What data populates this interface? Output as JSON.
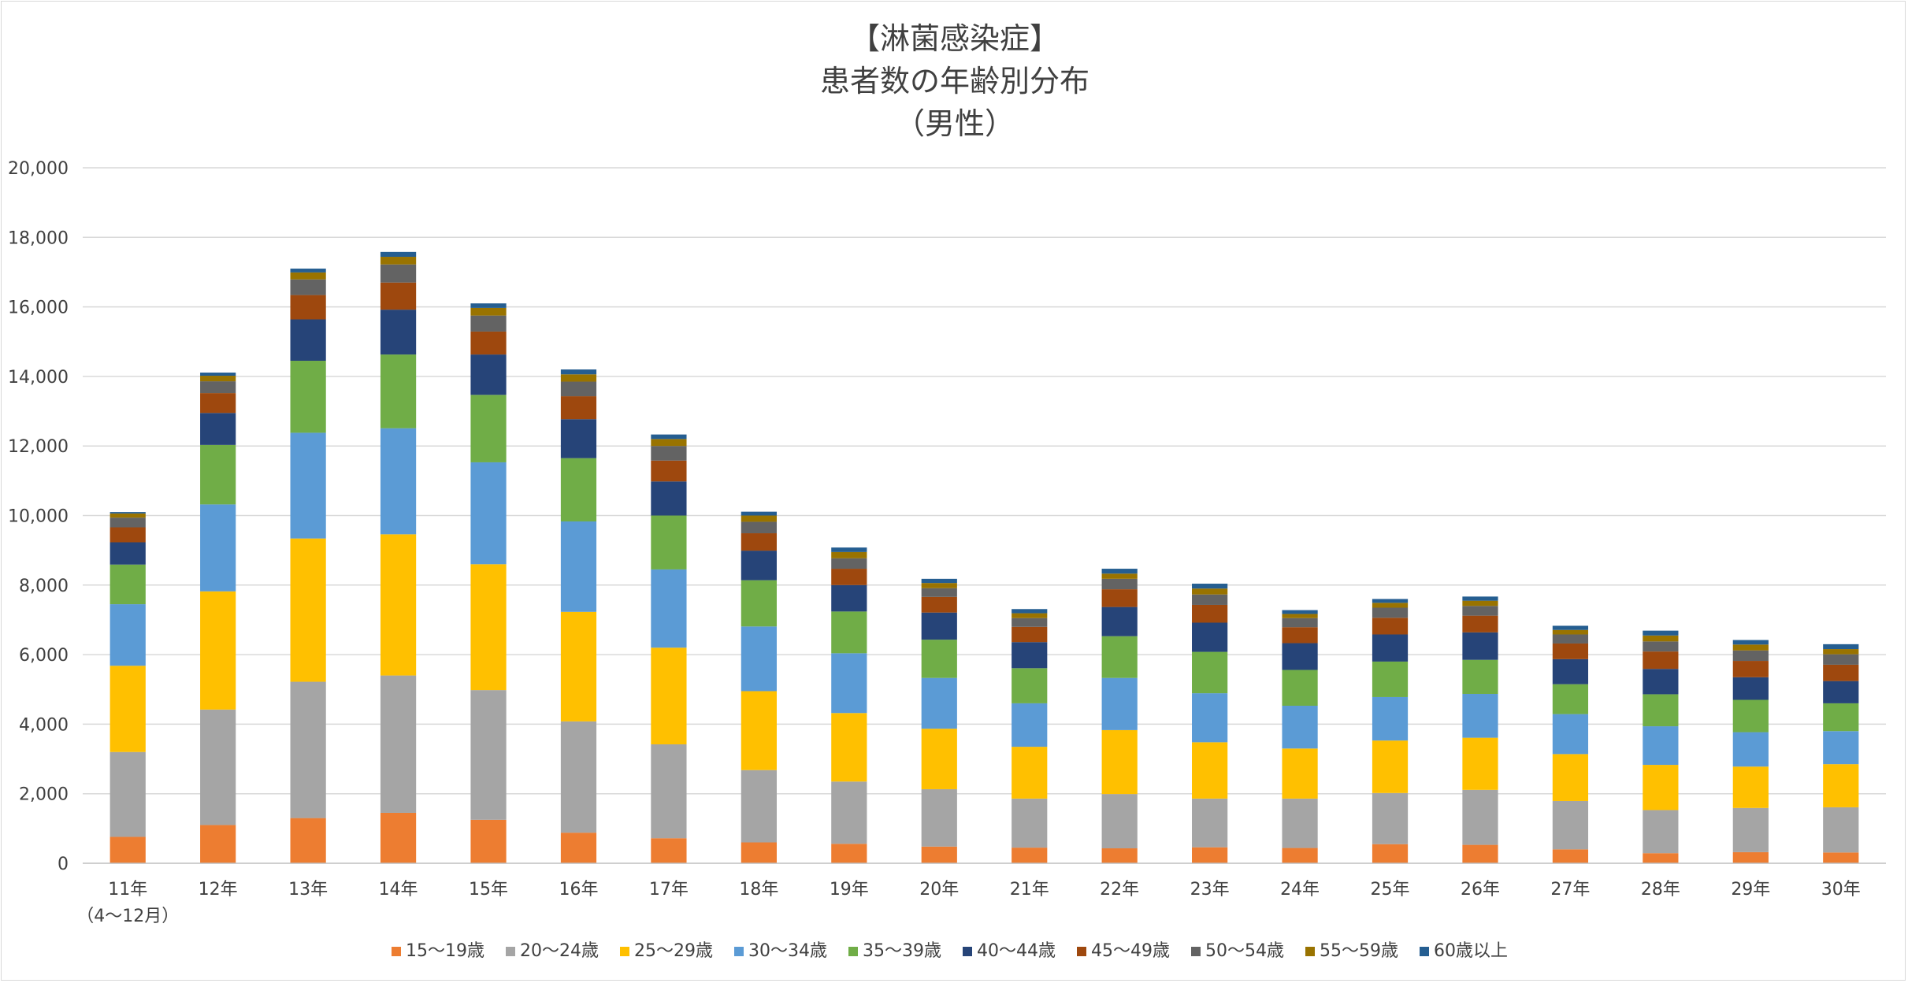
{
  "chart_data": {
    "type": "bar",
    "stacked": true,
    "title_lines": [
      "【淋菌感染症】",
      "患者数の年齢別分布",
      "（男性）"
    ],
    "categories": [
      "11年",
      "12年",
      "13年",
      "14年",
      "15年",
      "16年",
      "17年",
      "18年",
      "19年",
      "20年",
      "21年",
      "22年",
      "23年",
      "24年",
      "25年",
      "26年",
      "27年",
      "28年",
      "29年",
      "30年"
    ],
    "category_sublabels": [
      "（4～12月）",
      "",
      "",
      "",
      "",
      "",
      "",
      "",
      "",
      "",
      "",
      "",
      "",
      "",
      "",
      "",
      "",
      "",
      "",
      ""
    ],
    "ylim": [
      0,
      20000
    ],
    "y_ticks": [
      "0",
      "2,000",
      "4,000",
      "6,000",
      "8,000",
      "10,000",
      "12,000",
      "14,000",
      "16,000",
      "18,000",
      "20,000"
    ],
    "y_tick_values": [
      0,
      2000,
      4000,
      6000,
      8000,
      10000,
      12000,
      14000,
      16000,
      18000,
      20000
    ],
    "grid": true,
    "legend_position": "bottom",
    "series": [
      {
        "name": "15～19歳",
        "color": "#ED7D31",
        "values": [
          760,
          1100,
          1300,
          1450,
          1250,
          880,
          720,
          600,
          560,
          480,
          450,
          430,
          460,
          440,
          550,
          530,
          400,
          290,
          320,
          310
        ]
      },
      {
        "name": "20～24歳",
        "color": "#A5A5A5",
        "values": [
          2440,
          3320,
          3920,
          3950,
          3730,
          3200,
          2700,
          2080,
          1790,
          1650,
          1410,
          1560,
          1400,
          1420,
          1470,
          1580,
          1390,
          1240,
          1270,
          1300
        ]
      },
      {
        "name": "25～29歳",
        "color": "#FFC000",
        "values": [
          2480,
          3400,
          4120,
          4060,
          3620,
          3150,
          2780,
          2270,
          1970,
          1740,
          1490,
          1840,
          1620,
          1440,
          1510,
          1500,
          1350,
          1300,
          1190,
          1240
        ]
      },
      {
        "name": "30～34歳",
        "color": "#5B9BD5",
        "values": [
          1770,
          2500,
          3040,
          3050,
          2930,
          2600,
          2250,
          1860,
          1720,
          1460,
          1250,
          1500,
          1410,
          1230,
          1250,
          1260,
          1150,
          1110,
          990,
          950
        ]
      },
      {
        "name": "35～39歳",
        "color": "#70AD47",
        "values": [
          1140,
          1710,
          2070,
          2120,
          1940,
          1820,
          1550,
          1330,
          1200,
          1100,
          1010,
          1200,
          1190,
          1030,
          1020,
          980,
          860,
          920,
          930,
          800
        ]
      },
      {
        "name": "40～44歳",
        "color": "#264478",
        "values": [
          640,
          920,
          1190,
          1290,
          1160,
          1120,
          980,
          850,
          760,
          780,
          750,
          840,
          840,
          770,
          780,
          790,
          720,
          730,
          650,
          640
        ]
      },
      {
        "name": "45～49歳",
        "color": "#9E480E",
        "values": [
          430,
          570,
          700,
          780,
          660,
          660,
          600,
          500,
          470,
          450,
          440,
          510,
          510,
          460,
          480,
          480,
          450,
          500,
          470,
          470
        ]
      },
      {
        "name": "50～54歳",
        "color": "#636363",
        "values": [
          280,
          340,
          450,
          520,
          460,
          420,
          420,
          330,
          300,
          250,
          250,
          300,
          300,
          260,
          290,
          280,
          260,
          290,
          300,
          300
        ]
      },
      {
        "name": "55～59歳",
        "color": "#997300",
        "values": [
          120,
          160,
          200,
          220,
          220,
          210,
          200,
          180,
          180,
          150,
          140,
          150,
          170,
          120,
          140,
          150,
          130,
          170,
          170,
          150
        ]
      },
      {
        "name": "60歳以上",
        "color": "#255E91",
        "values": [
          40,
          90,
          110,
          140,
          130,
          140,
          130,
          110,
          130,
          120,
          120,
          140,
          140,
          110,
          110,
          120,
          120,
          140,
          130,
          140
        ]
      }
    ]
  }
}
